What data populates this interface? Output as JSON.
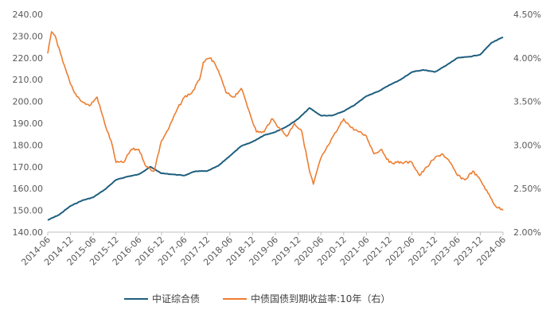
{
  "chart_data": {
    "type": "line",
    "title": "",
    "xlabel": "",
    "ylabel_left": "",
    "ylabel_right": "",
    "x_tick_labels": [
      "2014-06",
      "2014-12",
      "2015-06",
      "2015-12",
      "2016-06",
      "2016-12",
      "2017-06",
      "2017-12",
      "2018-06",
      "2018-12",
      "2019-06",
      "2019-12",
      "2020-06",
      "2020-12",
      "2021-06",
      "2021-12",
      "2022-06",
      "2022-12",
      "2023-06",
      "2023-12",
      "2024-06"
    ],
    "left_axis": {
      "min": 140,
      "max": 240,
      "step": 10,
      "tick_labels": [
        "140.00",
        "150.00",
        "160.00",
        "170.00",
        "180.00",
        "190.00",
        "200.00",
        "210.00",
        "220.00",
        "230.00",
        "240.00"
      ]
    },
    "right_axis": {
      "min": 2.0,
      "max": 4.5,
      "step": 0.5,
      "tick_labels": [
        "2.00%",
        "2.50%",
        "3.00%",
        "3.50%",
        "4.00%",
        "4.50%"
      ]
    },
    "grid": false,
    "legend_position": "bottom",
    "series": [
      {
        "name": "中证综合债",
        "axis": "left",
        "color": "#1f5f7f",
        "x": [
          "2014-06",
          "2014-09",
          "2014-12",
          "2015-03",
          "2015-06",
          "2015-09",
          "2015-12",
          "2016-03",
          "2016-06",
          "2016-09",
          "2016-12",
          "2017-03",
          "2017-06",
          "2017-09",
          "2017-12",
          "2018-03",
          "2018-06",
          "2018-09",
          "2018-12",
          "2019-03",
          "2019-06",
          "2019-09",
          "2019-12",
          "2020-03",
          "2020-06",
          "2020-09",
          "2020-12",
          "2021-03",
          "2021-06",
          "2021-09",
          "2021-12",
          "2022-03",
          "2022-06",
          "2022-09",
          "2022-12",
          "2023-03",
          "2023-06",
          "2023-09",
          "2023-12",
          "2024-03",
          "2024-06"
        ],
        "values": [
          145.5,
          148,
          152,
          154.5,
          156,
          159.5,
          164,
          165.5,
          166.5,
          170,
          167,
          166.5,
          166,
          168,
          168,
          170.5,
          175,
          179.5,
          181.5,
          184.5,
          186,
          188.5,
          192,
          197,
          193.5,
          193.5,
          195.5,
          198.5,
          202.5,
          204.5,
          207.5,
          210,
          213.5,
          214.5,
          213.5,
          216.5,
          220,
          220.5,
          221.5,
          227,
          229.5
        ]
      },
      {
        "name": "中债国债到期收益率:10年（右）",
        "axis": "right",
        "color": "#ed7d31",
        "x": [
          "2014-06",
          "2014-07",
          "2014-08",
          "2014-10",
          "2014-12",
          "2015-01",
          "2015-03",
          "2015-05",
          "2015-07",
          "2015-09",
          "2015-11",
          "2015-12",
          "2016-02",
          "2016-04",
          "2016-06",
          "2016-08",
          "2016-10",
          "2016-12",
          "2017-02",
          "2017-04",
          "2017-06",
          "2017-08",
          "2017-10",
          "2017-11",
          "2018-01",
          "2018-03",
          "2018-05",
          "2018-07",
          "2018-09",
          "2018-11",
          "2019-01",
          "2019-03",
          "2019-05",
          "2019-07",
          "2019-09",
          "2019-11",
          "2020-01",
          "2020-03",
          "2020-04",
          "2020-06",
          "2020-08",
          "2020-10",
          "2020-12",
          "2021-02",
          "2021-04",
          "2021-06",
          "2021-08",
          "2021-10",
          "2021-12",
          "2022-02",
          "2022-04",
          "2022-06",
          "2022-08",
          "2022-10",
          "2022-12",
          "2023-02",
          "2023-04",
          "2023-06",
          "2023-08",
          "2023-10",
          "2023-12",
          "2024-02",
          "2024-04",
          "2024-06"
        ],
        "values": [
          4.05,
          4.3,
          4.25,
          3.95,
          3.7,
          3.6,
          3.5,
          3.45,
          3.55,
          3.25,
          3.0,
          2.8,
          2.8,
          2.95,
          2.95,
          2.75,
          2.7,
          3.05,
          3.2,
          3.4,
          3.55,
          3.6,
          3.75,
          3.95,
          4.0,
          3.85,
          3.6,
          3.55,
          3.65,
          3.4,
          3.15,
          3.15,
          3.3,
          3.2,
          3.1,
          3.25,
          3.15,
          2.7,
          2.55,
          2.85,
          3.0,
          3.15,
          3.3,
          3.2,
          3.15,
          3.1,
          2.9,
          2.95,
          2.8,
          2.8,
          2.8,
          2.8,
          2.65,
          2.75,
          2.85,
          2.9,
          2.8,
          2.65,
          2.6,
          2.7,
          2.6,
          2.45,
          2.3,
          2.25
        ]
      }
    ]
  }
}
